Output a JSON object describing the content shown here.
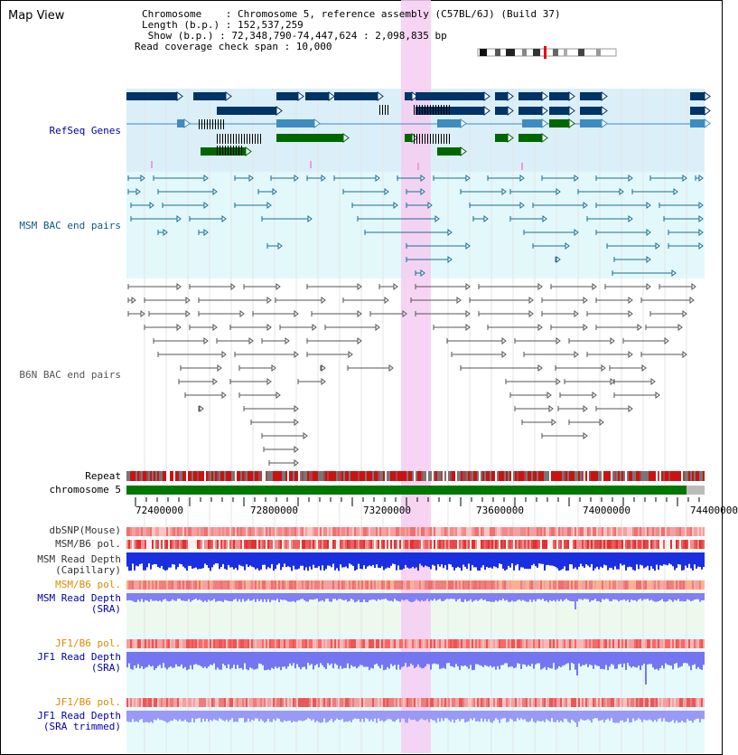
{
  "title": "Map View",
  "info": {
    "chromosome": "Chromosome    : Chromosome 5, reference assembly (C57BL/6J) (Build 37)",
    "length": "Length (b.p.) : 152,537,259",
    "show": " Show (b.p.) : 72,348,790-74,447,624 : 2,098,835 bp",
    "coverage": "Read coverage check span : 10,000"
  },
  "tracks": {
    "refseq": "RefSeq Genes",
    "msm_bac": "MSM BAC end pairs",
    "b6n_bac": "B6N BAC end pairs",
    "repeat": "Repeat",
    "chromosome": "chromosome 5",
    "dbsnp": "dbSNP(Mouse)",
    "msm_b6_pol_1": "MSM/B6 pol.",
    "msm_depth_cap_1": "MSM Read Depth",
    "msm_depth_cap_2": "(Capillary)",
    "msm_b6_pol_2": "MSM/B6 pol.",
    "msm_depth_sra_1": "MSM Read Depth",
    "msm_depth_sra_2": "(SRA)",
    "jf1_b6_pol_1": "JF1/B6 pol.",
    "jf1_depth_sra_1": "JF1 Read Depth",
    "jf1_depth_sra_2": "(SRA)",
    "jf1_b6_pol_2": "JF1/B6 pol.",
    "jf1_depth_trim_1": "JF1 Read Depth",
    "jf1_depth_trim_2": "(SRA trimmed)"
  },
  "axis_ticks": [
    "72400000",
    "72800000",
    "73200000",
    "73600000",
    "74000000",
    "74400000"
  ],
  "colors": {
    "refseq_dark": "#003366",
    "refseq_mid": "#3d8bbf",
    "refseq_green": "#006600",
    "msm_line": "#1a6f8f",
    "b6n_line": "#555555",
    "highlight": "#f6cdf2",
    "label_blue": "#0000aa",
    "label_orange": "#e08a00",
    "chrom_green": "#007700"
  }
}
